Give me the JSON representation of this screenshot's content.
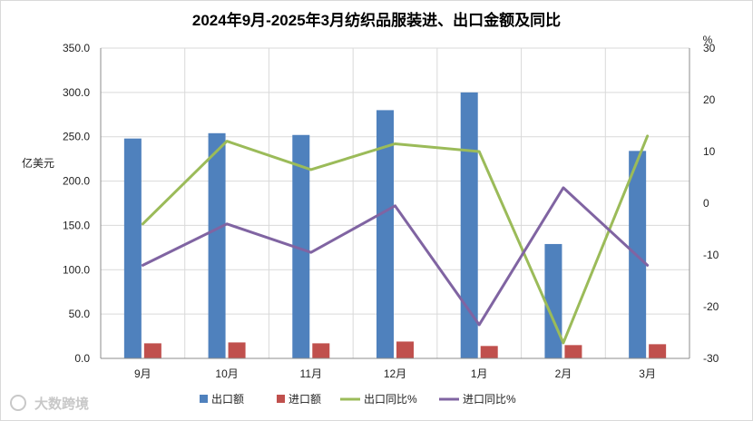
{
  "chart_data": {
    "type": "bar",
    "title": "2024年9月-2025年3月纺织品服装进、出口金额及同比",
    "categories": [
      "9月",
      "10月",
      "11月",
      "12月",
      "1月",
      "2月",
      "3月"
    ],
    "ylabel": "亿美元",
    "y2label": "%",
    "ylim": [
      0,
      350
    ],
    "y2lim": [
      -30,
      30
    ],
    "yticks": [
      "0.0",
      "50.0",
      "100.0",
      "150.0",
      "200.0",
      "250.0",
      "300.0",
      "350.0"
    ],
    "y2ticks": [
      "30",
      "20",
      "10",
      "0",
      "-10",
      "-20",
      "-30"
    ],
    "grid": true,
    "legend_position": "bottom",
    "series": [
      {
        "name": "出口额",
        "type": "bar",
        "axis": "left",
        "color": "#4f81bd",
        "values": [
          248,
          254,
          252,
          280,
          300,
          129,
          234
        ]
      },
      {
        "name": "进口额",
        "type": "bar",
        "axis": "left",
        "color": "#c0504d",
        "values": [
          17,
          18,
          17,
          19,
          14,
          15,
          16
        ]
      },
      {
        "name": "出口同比%",
        "type": "line",
        "axis": "right",
        "color": "#9bbb59",
        "values": [
          -4,
          12,
          6.5,
          11.5,
          10,
          -27,
          13
        ]
      },
      {
        "name": "进口同比%",
        "type": "line",
        "axis": "right",
        "color": "#8064a2",
        "values": [
          -12,
          -4,
          -9.5,
          -0.5,
          -23.5,
          3,
          -12
        ]
      }
    ]
  },
  "watermark": "大数跨境"
}
